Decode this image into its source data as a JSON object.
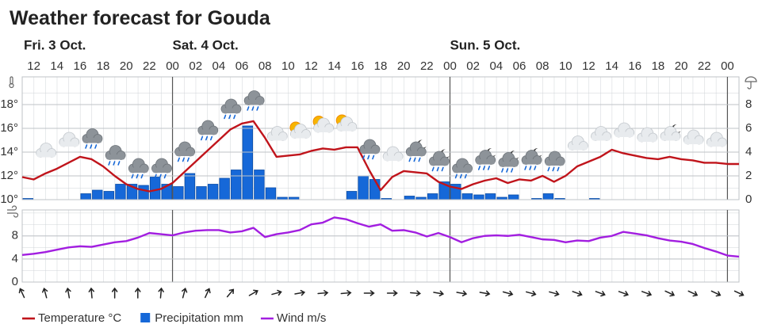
{
  "chart_data": {
    "type": "meteogram",
    "title": "Weather forecast for Gouda",
    "day_labels": [
      "Fri. 3 Oct.",
      "Sat. 4 Oct.",
      "Sun. 5 Oct."
    ],
    "day_breaks": [
      13,
      37,
      61
    ],
    "categories": [
      null,
      "12",
      null,
      "14",
      null,
      "16",
      null,
      "18",
      null,
      "20",
      null,
      "22",
      null,
      "00",
      null,
      "02",
      null,
      "04",
      null,
      "06",
      null,
      "08",
      null,
      "10",
      null,
      "12",
      null,
      "14",
      null,
      "16",
      null,
      "18",
      null,
      "20",
      null,
      "22",
      null,
      "00",
      null,
      "02",
      null,
      "04",
      null,
      "06",
      null,
      "08",
      null,
      "10",
      null,
      "12",
      null,
      "14",
      null,
      "16",
      null,
      "18",
      null,
      "20",
      null,
      "22",
      null,
      "00",
      null
    ],
    "series": [
      {
        "name": "Temperature °C",
        "color": "#c0141b",
        "type": "line",
        "axis": "y",
        "values": [
          11.9,
          11.7,
          12.2,
          12.6,
          13.1,
          13.6,
          13.4,
          12.8,
          12.0,
          11.3,
          10.9,
          10.7,
          10.9,
          11.4,
          12.3,
          13.2,
          14.1,
          15.0,
          15.9,
          16.4,
          16.6,
          15.2,
          13.6,
          13.7,
          13.8,
          14.1,
          14.3,
          14.2,
          14.4,
          14.4,
          12.5,
          10.8,
          11.9,
          12.4,
          12.3,
          12.2,
          11.5,
          11.1,
          10.9,
          11.3,
          11.6,
          11.8,
          11.4,
          11.7,
          11.6,
          12.0,
          11.5,
          12.0,
          12.8,
          13.2,
          13.6,
          14.2,
          13.9,
          13.7,
          13.5,
          13.4,
          13.6,
          13.4,
          13.3,
          13.1,
          13.1,
          13.0,
          13.0
        ]
      },
      {
        "name": "Precipitation mm",
        "color": "#1668d8",
        "type": "bar",
        "axis": "y2",
        "values": [
          0.1,
          0,
          0,
          0,
          0,
          0.5,
          0.8,
          0.7,
          1.3,
          1.3,
          1.2,
          1.9,
          1.3,
          1.1,
          2.2,
          1.1,
          1.3,
          1.8,
          2.5,
          6.2,
          2.5,
          1.0,
          0.2,
          0.2,
          0,
          0,
          0,
          0,
          0.7,
          2.0,
          1.7,
          0.1,
          0,
          0.3,
          0.2,
          0.5,
          1.5,
          1.3,
          0.5,
          0.4,
          0.5,
          0.2,
          0.4,
          0,
          0.1,
          0.5,
          0.1,
          0,
          0,
          0.1,
          0,
          0,
          0,
          0,
          0,
          0,
          0,
          0,
          0,
          0,
          0,
          0,
          0
        ]
      },
      {
        "name": "Wind m/s",
        "color": "#a21ee0",
        "type": "line",
        "axis": "wind",
        "values": [
          4.7,
          4.9,
          5.2,
          5.6,
          6.0,
          6.2,
          6.1,
          6.5,
          6.9,
          7.1,
          7.7,
          8.5,
          8.3,
          8.1,
          8.6,
          8.9,
          9.0,
          9.0,
          8.6,
          8.8,
          9.4,
          7.8,
          8.3,
          8.6,
          9.0,
          10.0,
          10.3,
          11.2,
          10.9,
          10.2,
          9.6,
          10.0,
          8.9,
          9.0,
          8.6,
          7.9,
          8.5,
          7.8,
          6.9,
          7.6,
          8.0,
          8.1,
          8.0,
          8.2,
          7.8,
          7.4,
          7.3,
          6.9,
          7.2,
          7.1,
          7.7,
          8.0,
          8.7,
          8.4,
          8.1,
          7.6,
          7.2,
          7.0,
          6.6,
          5.9,
          5.3,
          4.6,
          4.4
        ]
      }
    ],
    "ylim": [
      10,
      20.33
    ],
    "yticks": [
      {
        "value": 10,
        "label": "10°"
      },
      {
        "value": 12,
        "label": "12°"
      },
      {
        "value": 14,
        "label": "14°"
      },
      {
        "value": 16,
        "label": "16°"
      },
      {
        "value": 18,
        "label": "18°"
      }
    ],
    "y2lim": [
      0,
      10.33
    ],
    "y2ticks": [
      0,
      2,
      4,
      6,
      8
    ],
    "wind_ylim": [
      0,
      12.5
    ],
    "wind_yticks": [
      0,
      4,
      8
    ],
    "wind_direction": [
      -25,
      null,
      -15,
      null,
      -10,
      null,
      -5,
      null,
      0,
      null,
      0,
      null,
      5,
      null,
      15,
      null,
      25,
      null,
      40,
      null,
      60,
      null,
      75,
      null,
      80,
      null,
      85,
      null,
      85,
      null,
      90,
      null,
      90,
      null,
      95,
      null,
      100,
      null,
      100,
      null,
      100,
      null,
      105,
      null,
      105,
      null,
      105,
      null,
      110,
      null,
      110,
      null,
      110,
      null,
      110,
      null,
      115,
      null,
      115,
      null,
      115,
      null,
      115
    ],
    "symbols": [
      null,
      null,
      "cloud",
      null,
      "cloud",
      null,
      "rain",
      null,
      "rain",
      null,
      "rain",
      null,
      "rain",
      null,
      "rain",
      null,
      "rain",
      null,
      "rain",
      null,
      "rain",
      null,
      "cloud",
      null,
      "sun-cloud",
      null,
      "sun-cloud",
      null,
      "sun-cloud",
      null,
      "rain",
      null,
      "cloud",
      null,
      "moon-rain",
      null,
      "moon-rain",
      null,
      "rain",
      null,
      "moon-rain",
      null,
      "moon-rain",
      null,
      "moon-rain",
      null,
      "rain",
      null,
      "cloud",
      null,
      "cloud",
      null,
      "cloud",
      null,
      "cloud",
      null,
      "moon-cloud",
      null,
      "cloud",
      null,
      "cloud",
      null,
      null
    ],
    "grid": true
  }
}
